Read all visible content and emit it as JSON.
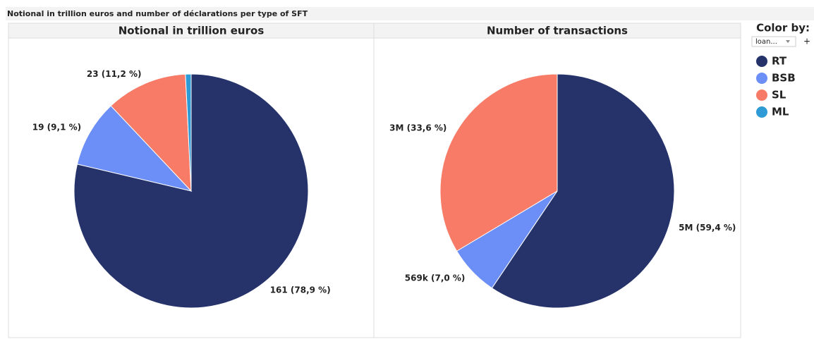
{
  "title": "Notional in trillion euros and number of déclarations per type of SFT",
  "legend": {
    "title": "Color by:",
    "dropdown": "loan...",
    "button": "+"
  },
  "chart_data": [
    {
      "type": "pie",
      "title": "Notional in trillion euros",
      "categories": [
        "RT",
        "BSB",
        "SL",
        "ML"
      ],
      "values": [
        161,
        19,
        23,
        1.6
      ],
      "value_labels": [
        "161 (78,9 %)",
        "19 (9,1 %)",
        "23 (11,2 %)",
        null
      ],
      "colors": [
        "#26336b",
        "#6b8ef7",
        "#f77b66",
        "#2e9bd6"
      ]
    },
    {
      "type": "pie",
      "title": "Number of transactions",
      "categories": [
        "RT",
        "BSB",
        "SL"
      ],
      "values": [
        4830000,
        569000,
        2730000
      ],
      "value_labels": [
        "5M (59,4 %)",
        "569k (7,0 %)",
        "3M (33,6 %)"
      ],
      "colors": [
        "#26336b",
        "#6b8ef7",
        "#f77b66"
      ]
    }
  ]
}
